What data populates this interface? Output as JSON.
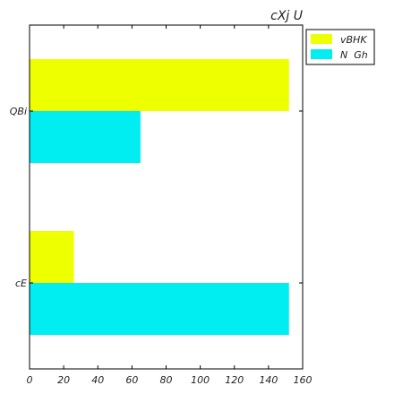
{
  "chart_data": {
    "type": "bar",
    "orientation": "horizontal",
    "title": "cXj U",
    "xlabel": "",
    "ylabel": "",
    "categories": [
      "cE",
      "QBi"
    ],
    "series": [
      {
        "name": "vBHK",
        "color": "#eeff00",
        "values": [
          26,
          152
        ]
      },
      {
        "name": "N  Gh",
        "color": "#00eef2",
        "values": [
          152,
          65
        ]
      }
    ],
    "xlim": [
      0,
      160
    ],
    "xticks": [
      0,
      20,
      40,
      60,
      80,
      100,
      120,
      140,
      160
    ],
    "grid": false,
    "legend_position": "outside-top-right"
  }
}
